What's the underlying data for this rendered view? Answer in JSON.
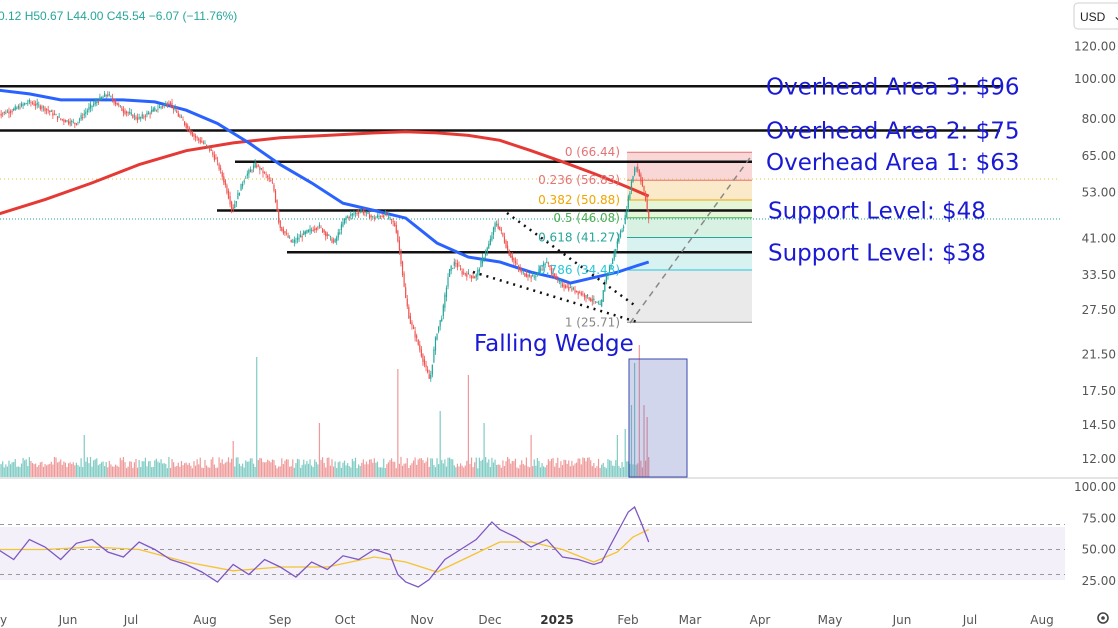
{
  "header": {
    "ohlc_text": "0.12  H50.67  L44.00  C45.54  −6.07 (−11.76%)",
    "currency": "USD",
    "currency_caret": "⌄"
  },
  "colors": {
    "up": "#26a69a",
    "down": "#ef5350",
    "ma_fast": "#2962ff",
    "ma_slow": "#e53935",
    "annotation": "#1a1ad4",
    "rsi": "#7e57c2",
    "rsi_ma": "#f4c430"
  },
  "chart_data": {
    "type": "candlestick",
    "price_axis": {
      "scale": "log",
      "range": [
        10.9,
        130
      ],
      "ticks": [
        "120.00",
        "100.00",
        "80.00",
        "65.00",
        "53.00",
        "41.00",
        "33.50",
        "27.50",
        "21.50",
        "17.50",
        "14.50",
        "12.00"
      ]
    },
    "time_axis": {
      "labels": [
        "y",
        "Jun",
        "Jul",
        "Aug",
        "Sep",
        "Oct",
        "Nov",
        "Dec",
        "2025",
        "Feb",
        "Mar",
        "Apr",
        "May",
        "Jun",
        "Jul",
        "Aug"
      ],
      "bold_label": "2025"
    },
    "price_path": [
      [
        0,
        82
      ],
      [
        10,
        84
      ],
      [
        20,
        88
      ],
      [
        30,
        85
      ],
      [
        40,
        80
      ],
      [
        50,
        78
      ],
      [
        60,
        86
      ],
      [
        70,
        92
      ],
      [
        80,
        84
      ],
      [
        90,
        80
      ],
      [
        100,
        84
      ],
      [
        110,
        88
      ],
      [
        115,
        82
      ],
      [
        125,
        73
      ],
      [
        135,
        68
      ],
      [
        140,
        63
      ],
      [
        145,
        56
      ],
      [
        150,
        48
      ],
      [
        158,
        58
      ],
      [
        165,
        62
      ],
      [
        172,
        58
      ],
      [
        176,
        55
      ],
      [
        180,
        44
      ],
      [
        188,
        40
      ],
      [
        195,
        42
      ],
      [
        205,
        44
      ],
      [
        215,
        40
      ],
      [
        222,
        46
      ],
      [
        232,
        48
      ],
      [
        240,
        46
      ],
      [
        248,
        47
      ],
      [
        254,
        44
      ],
      [
        258,
        35
      ],
      [
        260,
        30
      ],
      [
        263,
        26
      ],
      [
        268,
        23
      ],
      [
        273,
        20
      ],
      [
        276,
        18.5
      ],
      [
        280,
        24
      ],
      [
        284,
        27
      ],
      [
        288,
        34
      ],
      [
        292,
        36
      ],
      [
        296,
        34
      ],
      [
        305,
        33
      ],
      [
        314,
        40
      ],
      [
        318,
        45
      ],
      [
        322,
        42
      ],
      [
        326,
        38
      ],
      [
        334,
        34
      ],
      [
        342,
        33
      ],
      [
        350,
        36
      ],
      [
        358,
        32
      ],
      [
        366,
        31
      ],
      [
        374,
        30
      ],
      [
        380,
        29
      ],
      [
        385,
        28
      ],
      [
        388,
        33
      ],
      [
        392,
        36
      ],
      [
        397,
        42
      ],
      [
        400,
        45
      ],
      [
        404,
        55
      ],
      [
        407,
        62
      ],
      [
        410,
        58
      ],
      [
        414,
        50
      ],
      [
        415,
        46
      ]
    ],
    "sma_fast_path": [
      [
        0,
        94
      ],
      [
        20,
        92
      ],
      [
        40,
        89
      ],
      [
        60,
        89
      ],
      [
        80,
        89
      ],
      [
        100,
        88
      ],
      [
        120,
        84
      ],
      [
        140,
        78
      ],
      [
        160,
        70
      ],
      [
        180,
        62
      ],
      [
        200,
        56
      ],
      [
        220,
        50
      ],
      [
        240,
        48
      ],
      [
        260,
        46
      ],
      [
        280,
        40
      ],
      [
        300,
        37
      ],
      [
        320,
        36
      ],
      [
        340,
        34
      ],
      [
        355,
        33
      ],
      [
        365,
        32
      ],
      [
        380,
        33
      ],
      [
        395,
        34
      ],
      [
        405,
        35
      ],
      [
        415,
        36
      ]
    ],
    "sma_slow_path": [
      [
        0,
        47
      ],
      [
        30,
        51
      ],
      [
        60,
        56
      ],
      [
        90,
        62
      ],
      [
        120,
        67
      ],
      [
        150,
        70
      ],
      [
        180,
        72
      ],
      [
        210,
        73
      ],
      [
        240,
        74
      ],
      [
        260,
        74.5
      ],
      [
        280,
        74
      ],
      [
        300,
        73
      ],
      [
        320,
        71
      ],
      [
        340,
        67
      ],
      [
        360,
        63
      ],
      [
        380,
        59
      ],
      [
        395,
        56
      ],
      [
        405,
        54
      ],
      [
        415,
        52
      ]
    ],
    "volume": {
      "baseline": [
        0,
        0.12
      ],
      "spikes": [
        [
          55,
          0.35
        ],
        [
          150,
          0.3
        ],
        [
          165,
          1.0
        ],
        [
          205,
          0.45
        ],
        [
          255,
          0.9
        ],
        [
          282,
          0.55
        ],
        [
          300,
          0.85
        ],
        [
          310,
          0.45
        ],
        [
          340,
          0.35
        ],
        [
          395,
          0.35
        ],
        [
          400,
          0.4
        ],
        [
          404,
          0.6
        ],
        [
          406,
          0.95
        ],
        [
          409,
          1.1
        ],
        [
          412,
          0.6
        ],
        [
          414,
          0.5
        ]
      ]
    },
    "rsi": {
      "range": [
        0,
        100
      ],
      "ticks": [
        "100.00",
        "75.00",
        "50.00",
        "25.00"
      ],
      "bands": [
        70,
        50,
        30
      ],
      "path": [
        [
          0,
          50
        ],
        [
          10,
          42
        ],
        [
          20,
          58
        ],
        [
          30,
          52
        ],
        [
          40,
          42
        ],
        [
          50,
          55
        ],
        [
          60,
          58
        ],
        [
          70,
          48
        ],
        [
          80,
          44
        ],
        [
          90,
          56
        ],
        [
          100,
          50
        ],
        [
          110,
          42
        ],
        [
          120,
          38
        ],
        [
          130,
          32
        ],
        [
          140,
          24
        ],
        [
          150,
          38
        ],
        [
          160,
          30
        ],
        [
          170,
          42
        ],
        [
          180,
          36
        ],
        [
          190,
          28
        ],
        [
          200,
          40
        ],
        [
          210,
          34
        ],
        [
          220,
          45
        ],
        [
          230,
          42
        ],
        [
          240,
          50
        ],
        [
          250,
          46
        ],
        [
          255,
          30
        ],
        [
          260,
          24
        ],
        [
          268,
          20
        ],
        [
          275,
          26
        ],
        [
          285,
          42
        ],
        [
          295,
          50
        ],
        [
          305,
          58
        ],
        [
          315,
          72
        ],
        [
          320,
          66
        ],
        [
          330,
          60
        ],
        [
          340,
          52
        ],
        [
          350,
          58
        ],
        [
          360,
          44
        ],
        [
          370,
          42
        ],
        [
          380,
          38
        ],
        [
          385,
          40
        ],
        [
          390,
          52
        ],
        [
          396,
          66
        ],
        [
          402,
          80
        ],
        [
          406,
          84
        ],
        [
          410,
          72
        ],
        [
          415,
          56
        ]
      ],
      "ma_path": [
        [
          0,
          50
        ],
        [
          30,
          50
        ],
        [
          60,
          52
        ],
        [
          90,
          50
        ],
        [
          120,
          40
        ],
        [
          150,
          33
        ],
        [
          180,
          36
        ],
        [
          210,
          36
        ],
        [
          240,
          44
        ],
        [
          260,
          40
        ],
        [
          280,
          32
        ],
        [
          300,
          44
        ],
        [
          320,
          56
        ],
        [
          340,
          56
        ],
        [
          360,
          50
        ],
        [
          380,
          40
        ],
        [
          395,
          48
        ],
        [
          405,
          60
        ],
        [
          415,
          66
        ]
      ]
    },
    "horizontal_levels": [
      {
        "label": "Overhead Area 3: $96",
        "price": 96
      },
      {
        "label": "Overhead Area 2: $75",
        "price": 75
      },
      {
        "label": "Overhead Area 1: $63",
        "price": 63
      },
      {
        "label": "Support Level: $48",
        "price": 48
      },
      {
        "label": "Support Level: $38",
        "price": 38
      }
    ],
    "fibonacci": [
      {
        "label": "0 (66.44)",
        "price": 66.44
      },
      {
        "label": "0.236 (56.83)",
        "price": 56.83
      },
      {
        "label": "0.382 (50.88)",
        "price": 50.88
      },
      {
        "label": "0.5 (46.08)",
        "price": 46.08
      },
      {
        "label": "0.618 (41.27)",
        "price": 41.27
      },
      {
        "label": "0.786 (34.43)",
        "price": 34.43
      },
      {
        "label": "1 (25.71)",
        "price": 25.71
      }
    ],
    "pattern_label": "Falling Wedge"
  }
}
